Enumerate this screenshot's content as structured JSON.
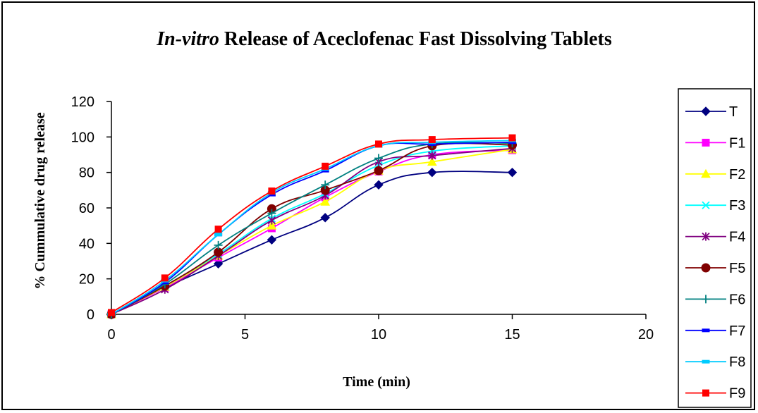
{
  "chart_data": {
    "type": "line",
    "title_prefix": "In-vitro",
    "title_rest": "Release of Aceclofenac Fast Dissolving Tablets",
    "xlabel": "Time (min)",
    "ylabel": "% Cummulative drug release",
    "xlim": [
      0,
      20
    ],
    "ylim": [
      0,
      120
    ],
    "xticks": [
      "0",
      "5",
      "10",
      "15",
      "20"
    ],
    "yticks": [
      "0",
      "20",
      "40",
      "60",
      "80",
      "100",
      "120"
    ],
    "grid": false,
    "legend_position": "right",
    "x": [
      0,
      2,
      4,
      6,
      8,
      10,
      12,
      15
    ],
    "series": [
      {
        "name": "T",
        "color": "#000080",
        "marker": "diamond",
        "values": [
          0,
          15,
          28.5,
          42,
          54.5,
          73,
          80,
          80
        ]
      },
      {
        "name": "F1",
        "color": "#FF00FF",
        "marker": "square",
        "values": [
          0,
          15,
          32,
          48.5,
          66,
          80.5,
          90,
          92.5
        ]
      },
      {
        "name": "F2",
        "color": "#FFFF00",
        "marker": "triangle",
        "values": [
          0,
          15.5,
          33,
          50,
          63.5,
          81,
          86,
          93
        ]
      },
      {
        "name": "F3",
        "color": "#00FFFF",
        "marker": "x",
        "values": [
          0,
          16,
          34,
          54,
          68,
          84,
          92,
          95
        ]
      },
      {
        "name": "F4",
        "color": "#800080",
        "marker": "star",
        "values": [
          0,
          14,
          33,
          53,
          67,
          86,
          89.5,
          93.5
        ]
      },
      {
        "name": "F5",
        "color": "#800000",
        "marker": "circle",
        "values": [
          0,
          16,
          35,
          59.5,
          70,
          81,
          95,
          95.5
        ]
      },
      {
        "name": "F6",
        "color": "#008080",
        "marker": "plus",
        "values": [
          0,
          17,
          39,
          57,
          73,
          88,
          96,
          96.5
        ]
      },
      {
        "name": "F7",
        "color": "#0000FF",
        "marker": "dash",
        "values": [
          0,
          18,
          45,
          67.5,
          81,
          95,
          96,
          97
        ]
      },
      {
        "name": "F8",
        "color": "#00CCFF",
        "marker": "dash",
        "values": [
          0,
          19,
          45,
          68.5,
          82,
          95,
          97,
          98
        ]
      },
      {
        "name": "F9",
        "color": "#FF0000",
        "marker": "square-small",
        "values": [
          1,
          20.5,
          48,
          69.5,
          83.5,
          96,
          98.5,
          99.5
        ]
      }
    ]
  }
}
